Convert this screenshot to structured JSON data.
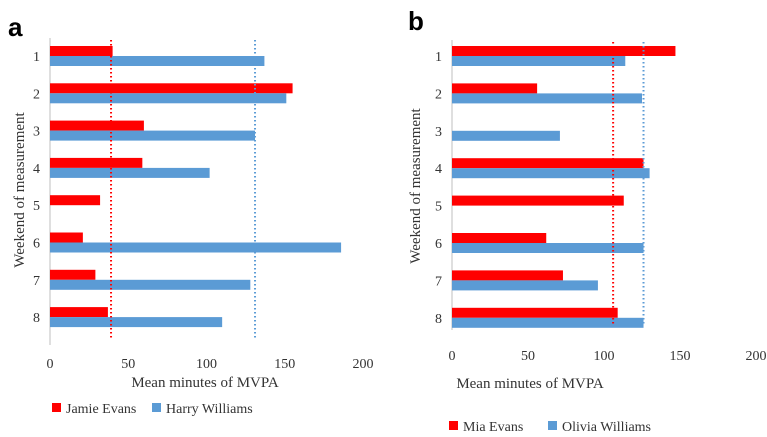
{
  "colors": {
    "series1": "#ff0000",
    "series2": "#5b9bd5",
    "axis": "#bfbfbf",
    "text": "#333333"
  },
  "chart_data": [
    {
      "type": "bar",
      "orientation": "horizontal",
      "panel_label": "a",
      "categories": [
        "1",
        "2",
        "3",
        "4",
        "5",
        "6",
        "7",
        "8"
      ],
      "ylabel": "Weekend of measurement",
      "xlabel": "Mean minutes of MVPA",
      "xlim": [
        0,
        200
      ],
      "xticks": [
        "0",
        "50",
        "100",
        "150",
        "200"
      ],
      "grid": false,
      "legend_position": "bottom",
      "series": [
        {
          "name": "Jamie Evans",
          "color": "#ff0000",
          "values": [
            40,
            155,
            60,
            59,
            32,
            21,
            29,
            37
          ]
        },
        {
          "name": "Harry Williams",
          "color": "#5b9bd5",
          "values": [
            137,
            151,
            131,
            102,
            null,
            186,
            128,
            110
          ]
        }
      ],
      "reference_lines": [
        {
          "color": "#ff0000",
          "value": 39
        },
        {
          "color": "#5b9bd5",
          "value": 131
        }
      ]
    },
    {
      "type": "bar",
      "orientation": "horizontal",
      "panel_label": "b",
      "categories": [
        "1",
        "2",
        "3",
        "4",
        "5",
        "6",
        "7",
        "8"
      ],
      "ylabel": "Weekend of measurement",
      "xlabel": "Mean minutes of MVPA",
      "xlim": [
        0,
        200
      ],
      "xticks": [
        "0",
        "50",
        "100",
        "150",
        "200"
      ],
      "grid": false,
      "legend_position": "bottom",
      "series": [
        {
          "name": "Mia Evans",
          "color": "#ff0000",
          "values": [
            147,
            56,
            null,
            126,
            113,
            62,
            73,
            109
          ]
        },
        {
          "name": "Olivia Williams",
          "color": "#5b9bd5",
          "values": [
            114,
            125,
            71,
            130,
            null,
            126,
            96,
            126
          ]
        }
      ],
      "reference_lines": [
        {
          "color": "#ff0000",
          "value": 106
        },
        {
          "color": "#5b9bd5",
          "value": 126
        }
      ]
    }
  ]
}
